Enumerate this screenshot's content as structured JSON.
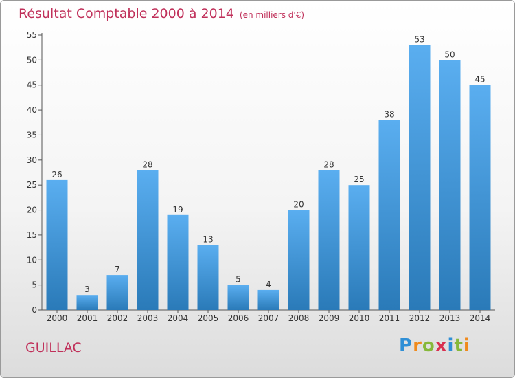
{
  "chart_data": {
    "type": "bar",
    "title": "Résultat Comptable 2000 à 2014",
    "subtitle": "(en milliers d'€)",
    "categories": [
      "2000",
      "2001",
      "2002",
      "2003",
      "2004",
      "2005",
      "2006",
      "2007",
      "2008",
      "2009",
      "2010",
      "2011",
      "2012",
      "2013",
      "2014"
    ],
    "values": [
      26,
      3,
      7,
      28,
      19,
      13,
      5,
      4,
      20,
      28,
      25,
      38,
      53,
      50,
      45
    ],
    "ylim": [
      0,
      55
    ],
    "yticks": [
      0,
      5,
      10,
      15,
      20,
      25,
      30,
      35,
      40,
      45,
      50,
      55
    ],
    "xlabel": "",
    "ylabel": "",
    "grid": false,
    "bar_color_top": "#5aaef0",
    "bar_color_bottom": "#2a7ab8"
  },
  "footer": {
    "commune": "GUILLAC",
    "brand": "Proxiti"
  },
  "colors": {
    "title": "#c0305a",
    "axis": "#555555"
  }
}
